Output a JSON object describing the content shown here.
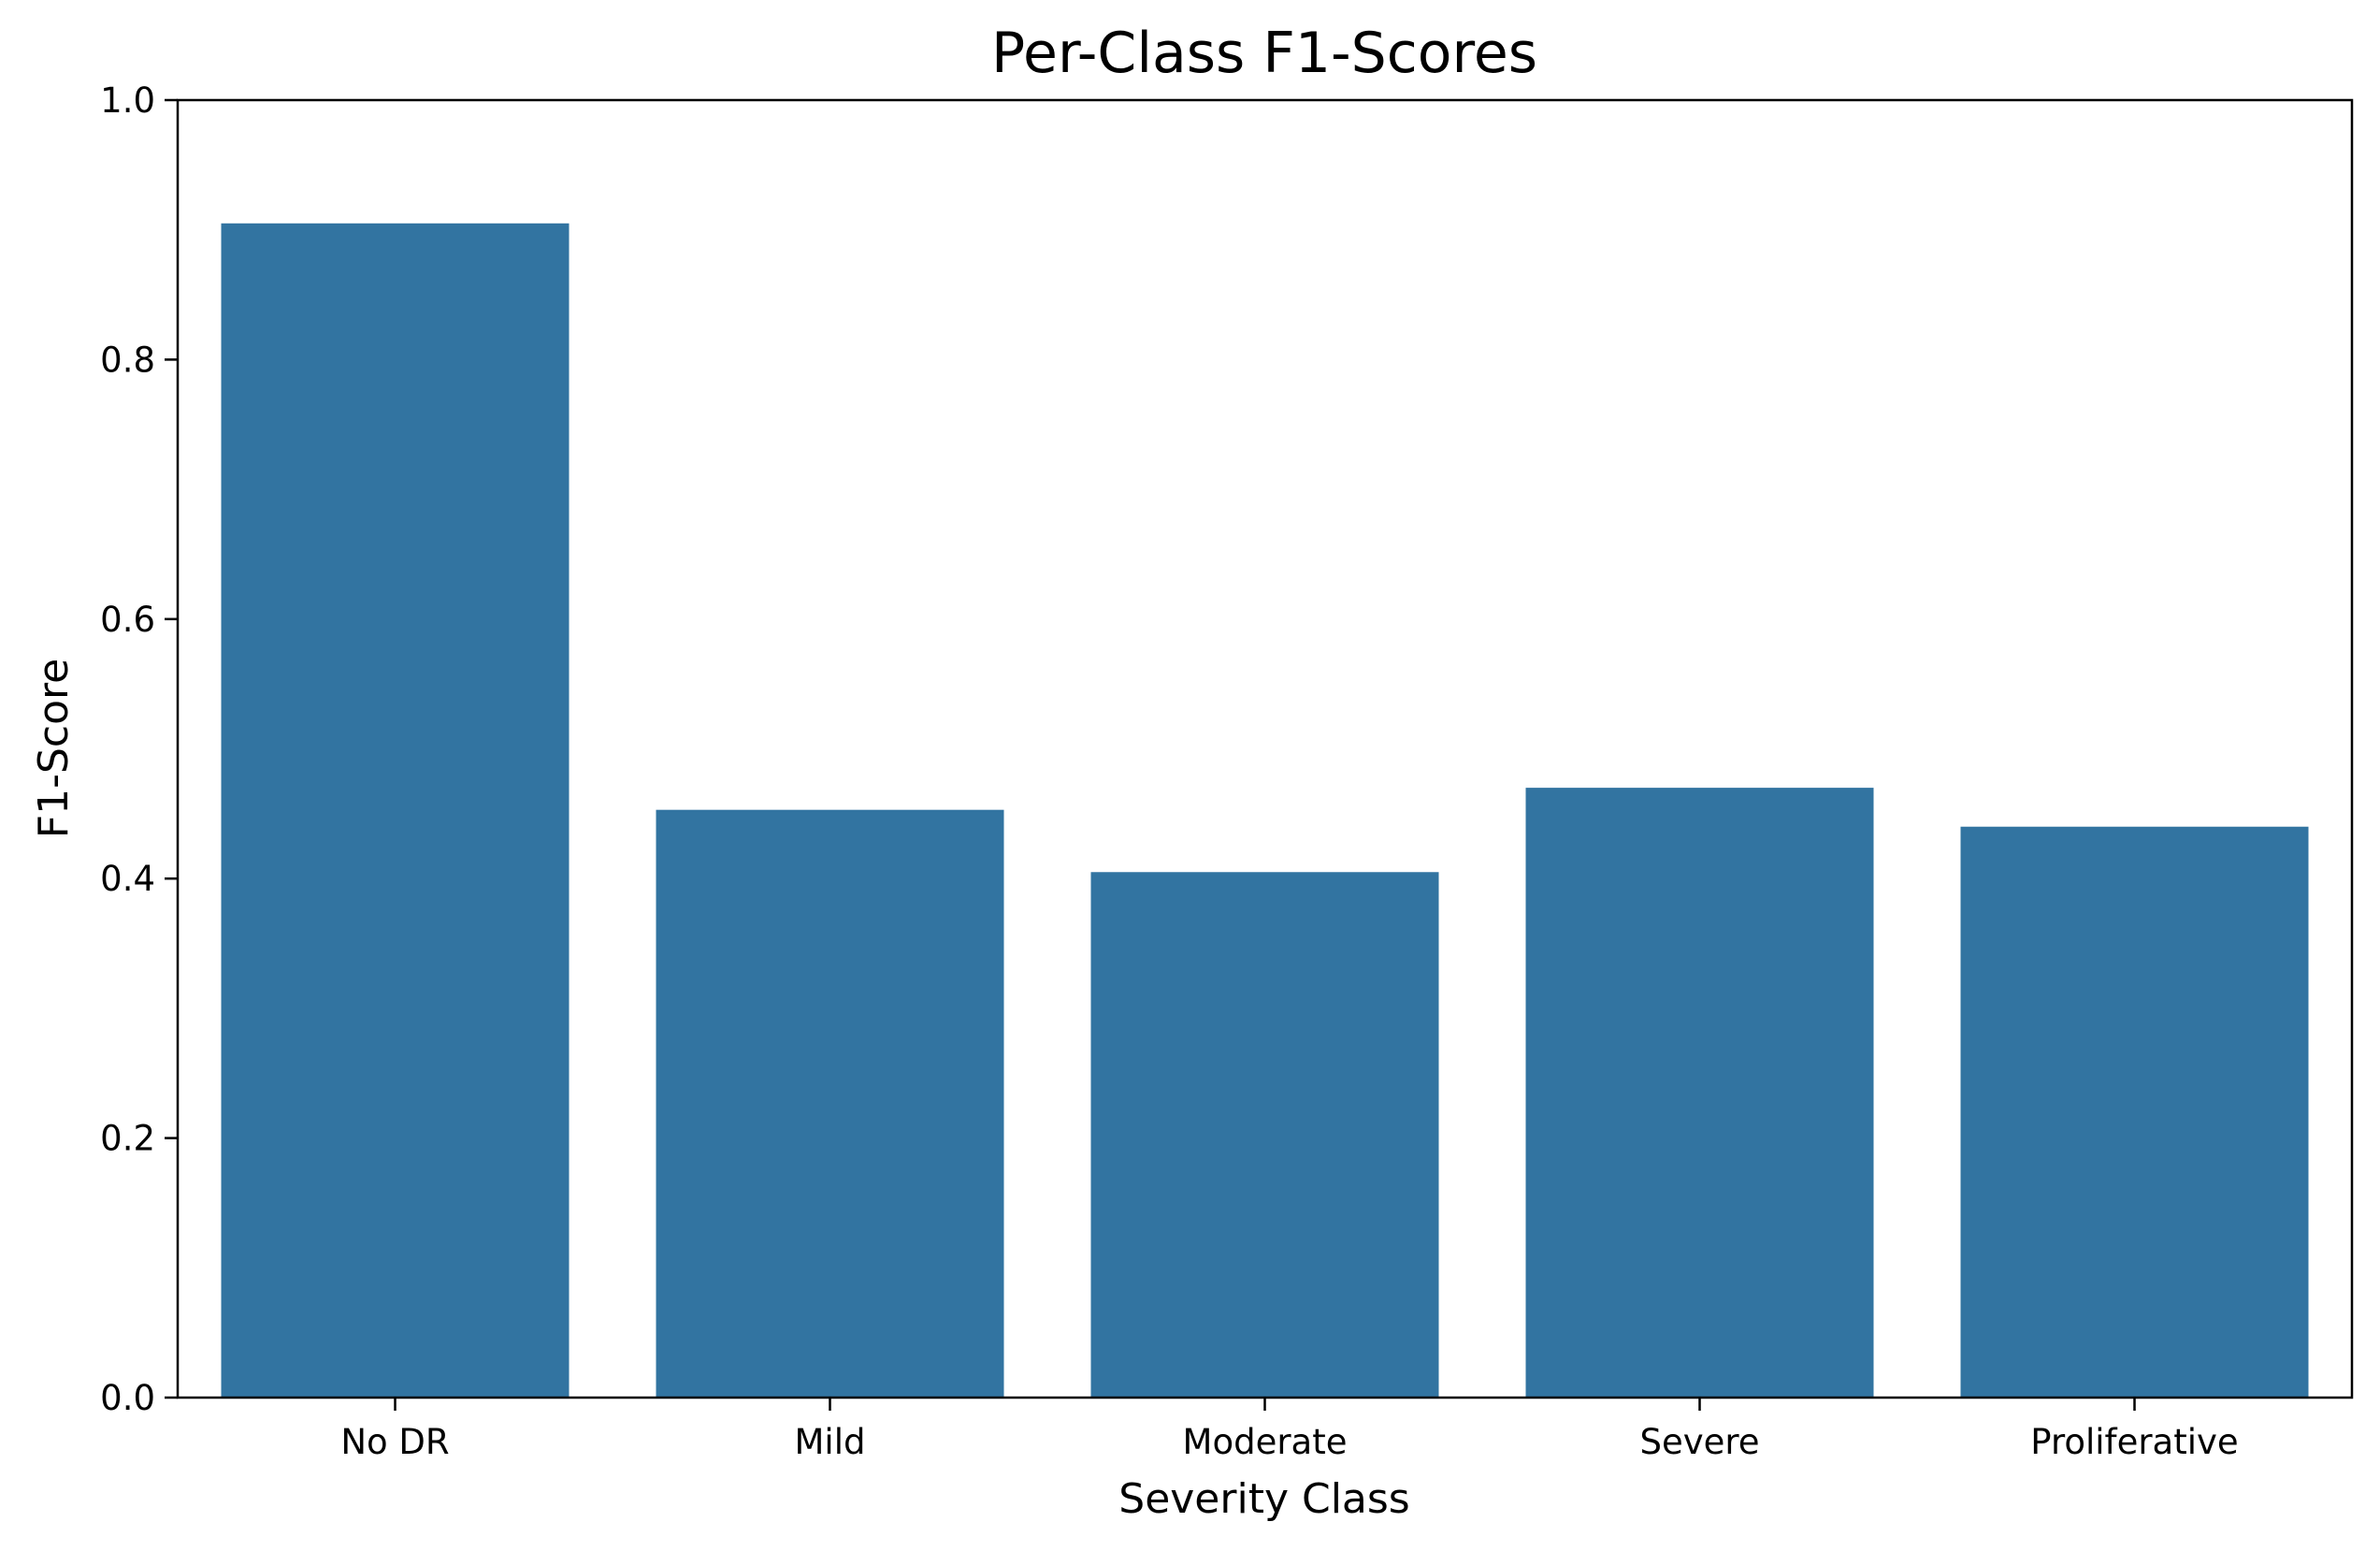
{
  "chart_data": {
    "type": "bar",
    "title": "Per-Class F1-Scores",
    "xlabel": "Severity Class",
    "ylabel": "F1-Score",
    "categories": [
      "No DR",
      "Mild",
      "Moderate",
      "Severe",
      "Proliferative"
    ],
    "values": [
      0.905,
      0.453,
      0.405,
      0.47,
      0.44
    ],
    "ylim": [
      0,
      1.0
    ],
    "yticks": [
      "0.0",
      "0.2",
      "0.4",
      "0.6",
      "0.8",
      "1.0"
    ],
    "bar_color": "#3274a1",
    "grid": false,
    "legend": "none"
  }
}
